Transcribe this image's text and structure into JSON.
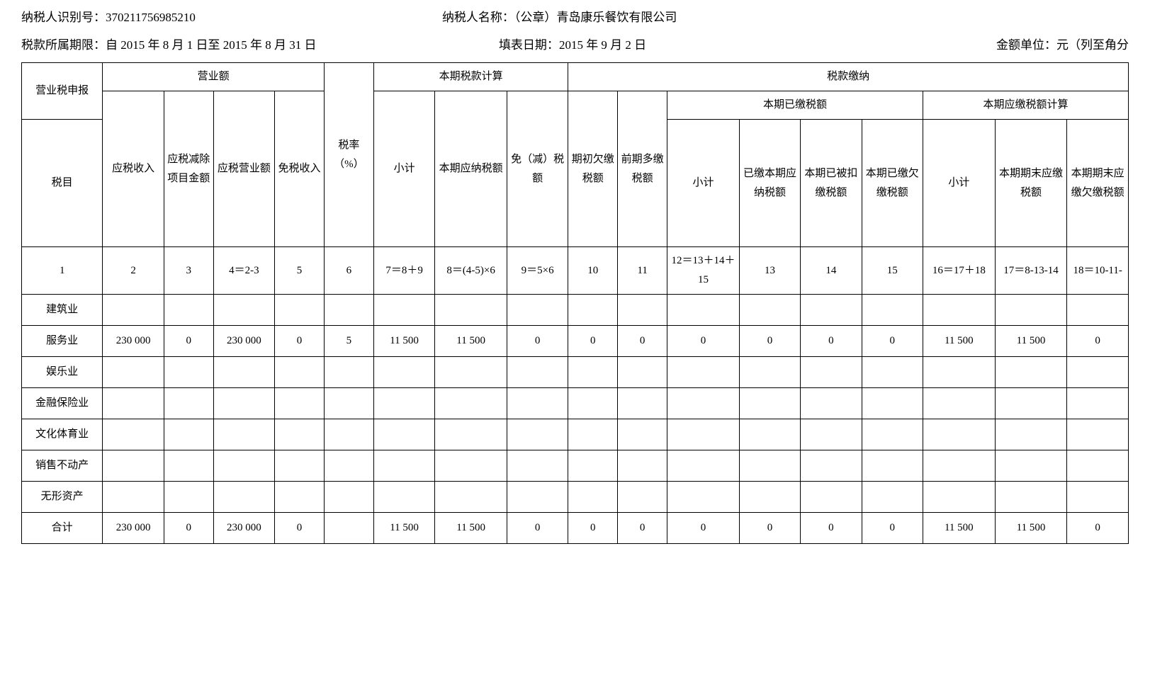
{
  "header": {
    "taxpayer_id_label": "纳税人识别号：",
    "taxpayer_id": "370211756985210",
    "taxpayer_name_label": "纳税人名称：（公章）",
    "taxpayer_name": "青岛康乐餐饮有限公司",
    "period_label": "税款所属期限：",
    "period_value": "自 2015 年 8 月 1 日至 2015 年 8 月 31 日",
    "fill_date_label": "填表日期：",
    "fill_date_value": "2015 年 9 月 2 日",
    "amount_unit_label": "金额单位：元（列至角分"
  },
  "table_headers": {
    "declaration": "营业税申报",
    "revenue": "营业额",
    "tax_calc": "本期税款计算",
    "tax_payment": "税款缴纳",
    "paid_amount": "本期已缴税额",
    "payable_calc": "本期应缴税额计算",
    "tax_item": "税目",
    "taxable_income": "应税收入",
    "deduct_amount": "应税减除项目金额",
    "taxable_revenue": "应税营业额",
    "exempt_income": "免税收入",
    "tax_rate": "税率（%）",
    "subtotal1": "小计",
    "current_payable": "本期应纳税额",
    "exempt_reduce": "免（减）税额",
    "initial_arrears": "期初欠缴税额",
    "prior_overpaid": "前期多缴税额",
    "subtotal2": "小计",
    "paid_current": "已缴本期应纳税额",
    "withheld": "本期已被扣缴税额",
    "paid_arrears": "本期已缴欠缴税额",
    "subtotal3": "小计",
    "period_end_payable": "本期期末应缴税额",
    "period_end_arrears": "本期期末应缴欠缴税额"
  },
  "formulas": {
    "c1": "1",
    "c2": "2",
    "c3": "3",
    "c4": "4＝2-3",
    "c5": "5",
    "c6": "6",
    "c7": "7＝8＋9",
    "c8": "8＝(4-5)×6",
    "c9": "9＝5×6",
    "c10": "10",
    "c11": "11",
    "c12": "12＝13＋14＋15",
    "c13": "13",
    "c14": "14",
    "c15": "15",
    "c16": "16＝17＋18",
    "c17": "17＝8-13-14",
    "c18": "18＝10-11-"
  },
  "rows": [
    {
      "name": "建筑业",
      "cells": [
        "",
        "",
        "",
        "",
        "",
        "",
        "",
        "",
        "",
        "",
        "",
        "",
        "",
        "",
        "",
        "",
        ""
      ]
    },
    {
      "name": "服务业",
      "cells": [
        "230 000",
        "0",
        "230 000",
        "0",
        "5",
        "11 500",
        "11 500",
        "0",
        "0",
        "0",
        "0",
        "0",
        "0",
        "0",
        "11 500",
        "11 500",
        "0"
      ]
    },
    {
      "name": "娱乐业",
      "cells": [
        "",
        "",
        "",
        "",
        "",
        "",
        "",
        "",
        "",
        "",
        "",
        "",
        "",
        "",
        "",
        "",
        ""
      ]
    },
    {
      "name": "金融保险业",
      "cells": [
        "",
        "",
        "",
        "",
        "",
        "",
        "",
        "",
        "",
        "",
        "",
        "",
        "",
        "",
        "",
        "",
        ""
      ]
    },
    {
      "name": "文化体育业",
      "cells": [
        "",
        "",
        "",
        "",
        "",
        "",
        "",
        "",
        "",
        "",
        "",
        "",
        "",
        "",
        "",
        "",
        ""
      ]
    },
    {
      "name": "销售不动产",
      "cells": [
        "",
        "",
        "",
        "",
        "",
        "",
        "",
        "",
        "",
        "",
        "",
        "",
        "",
        "",
        "",
        "",
        ""
      ]
    },
    {
      "name": "无形资产",
      "cells": [
        "",
        "",
        "",
        "",
        "",
        "",
        "",
        "",
        "",
        "",
        "",
        "",
        "",
        "",
        "",
        "",
        ""
      ]
    },
    {
      "name": "合计",
      "cells": [
        "230 000",
        "0",
        "230 000",
        "0",
        "",
        "11 500",
        "11 500",
        "0",
        "0",
        "0",
        "0",
        "0",
        "0",
        "0",
        "11 500",
        "11 500",
        "0"
      ]
    }
  ]
}
